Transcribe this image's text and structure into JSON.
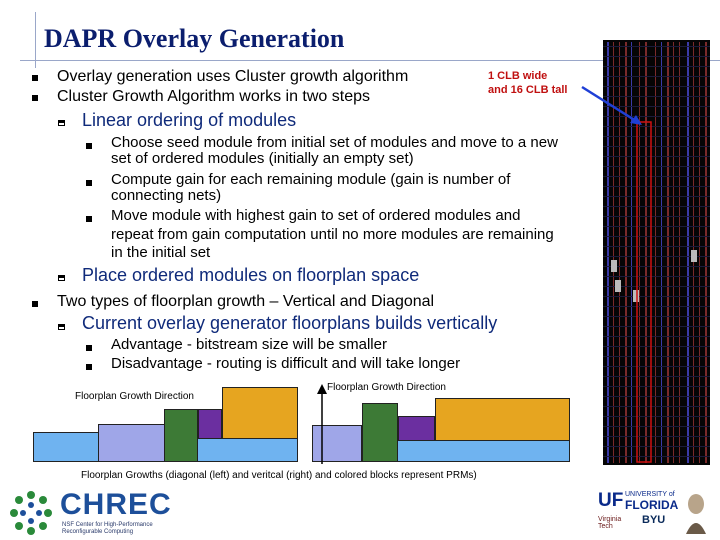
{
  "slide": {
    "title": "DAPR Overlay Generation",
    "bullets": [
      "Overlay generation uses Cluster growth algorithm",
      "Cluster Growth Algorithm works in two steps"
    ],
    "sub_linear": "Linear ordering of modules",
    "linear_steps": [
      [
        "Choose seed module from initial set of modules and move to a new",
        "set of ordered modules (initially an empty set)"
      ],
      [
        "Compute gain for each remaining module (gain is number of",
        "connecting nets)"
      ],
      [
        "Move module with highest gain to set of ordered modules and",
        "repeat from gain computation until no more modules are remaining",
        "in the initial set"
      ]
    ],
    "sub_place": "Place ordered modules on floorplan space",
    "bullet_growth": "Two types of floorplan growth – Vertical and Diagonal",
    "sub_current": "Current overlay generator floorplans builds vertically",
    "adv": "Advantage - bitstream size will be smaller",
    "disadv": "Disadvantage - routing is difficult and will take longer",
    "clb_note": [
      "1 CLB wide",
      "and 16 CLB tall"
    ],
    "diagram_left_label": "Floorplan Growth Direction",
    "diagram_right_label": "Floorplan Growth Direction",
    "caption": "Floorplan Growths (diagonal (left) and veritcal (right)  and colored blocks represent PRMs)"
  },
  "logos": {
    "chrec_name": "CHREC",
    "chrec_sub": [
      "NSF Center for High-Performance",
      "Reconfigurable Computing"
    ],
    "uf_line1": "UNIVERSITY of",
    "uf_line2": "FLORIDA",
    "byu": "BYU",
    "vt": "Virginia Tech"
  },
  "colors": {
    "title": "#0b1e6e",
    "sub": "#0f2a7a",
    "note": "#c01010",
    "arrow": "#1f3fd6",
    "clb_box": "#d01010"
  }
}
